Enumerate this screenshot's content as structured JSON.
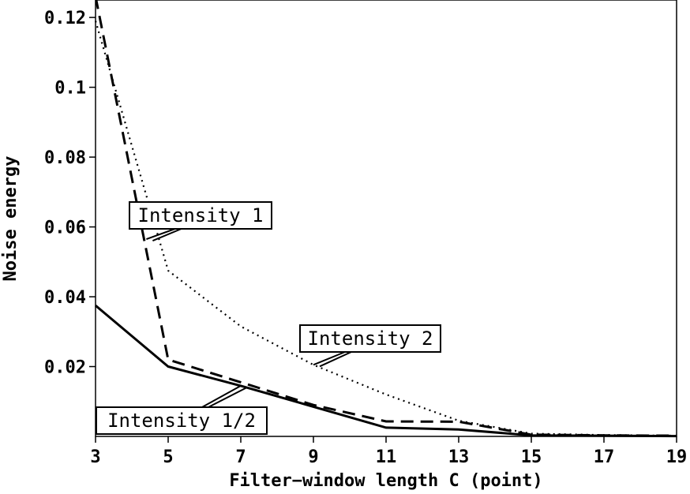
{
  "chart_data": {
    "type": "line",
    "xlabel": "Filter−window length C (point)",
    "ylabel": "Noise energy",
    "xlim": [
      3,
      19
    ],
    "ylim": [
      0,
      0.125
    ],
    "x_ticks": [
      "3",
      "5",
      "7",
      "9",
      "11",
      "13",
      "15",
      "17",
      "19"
    ],
    "x_tick_values": [
      3,
      5,
      7,
      9,
      11,
      13,
      15,
      17,
      19
    ],
    "y_ticks": [
      "0.02",
      "0.04",
      "0.06",
      "0.08",
      "0.1",
      "0.12"
    ],
    "y_tick_values": [
      0.02,
      0.04,
      0.06,
      0.08,
      0.1,
      0.12
    ],
    "grid": false,
    "legend": "none",
    "series": [
      {
        "name": "Intensity 1/2",
        "style": "solid",
        "x": [
          3,
          5,
          7,
          9,
          11,
          13,
          15,
          17,
          19
        ],
        "values": [
          0.0375,
          0.02,
          0.0145,
          0.0085,
          0.0025,
          0.002,
          0.0003,
          0.0002,
          0.0001
        ]
      },
      {
        "name": "Intensity 1",
        "style": "dashed",
        "x": [
          3,
          5,
          7,
          9,
          11,
          13,
          15,
          17,
          19
        ],
        "values": [
          0.126,
          0.022,
          0.0155,
          0.009,
          0.0043,
          0.0042,
          0.0005,
          0.0003,
          0.0002
        ]
      },
      {
        "name": "Intensity 2",
        "style": "dotted",
        "x": [
          3,
          5,
          7,
          9,
          11,
          13,
          15,
          17,
          19
        ],
        "values": [
          0.119,
          0.0475,
          0.0315,
          0.0205,
          0.012,
          0.0045,
          0.0008,
          0.0004,
          0.0002
        ]
      }
    ],
    "annotations": [
      {
        "text": "Intensity 1",
        "series": "Intensity 1",
        "x": 4.4,
        "y": 0.0565
      },
      {
        "text": "Intensity 2",
        "series": "Intensity 2",
        "x": 9.0,
        "y": 0.0205
      },
      {
        "text": "Intensity 1/2",
        "series": "Intensity 1/2",
        "x": 7.0,
        "y": 0.0145
      }
    ]
  }
}
